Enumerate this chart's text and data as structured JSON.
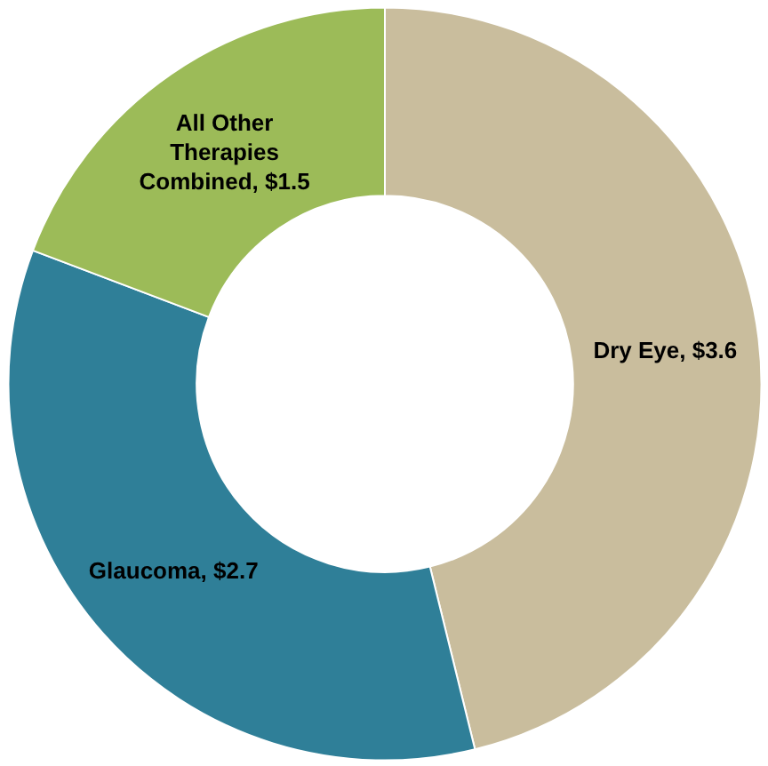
{
  "chart_data": {
    "type": "donut",
    "categories": [
      "Dry Eye",
      "Glaucoma",
      "All Other Therapies Combined"
    ],
    "values": [
      3.6,
      2.7,
      1.5
    ],
    "value_labels": [
      "$3.6",
      "$2.7",
      "$1.5"
    ],
    "colors": [
      "#c9bd9d",
      "#2f7f98",
      "#9cbb58"
    ],
    "legend": false
  }
}
